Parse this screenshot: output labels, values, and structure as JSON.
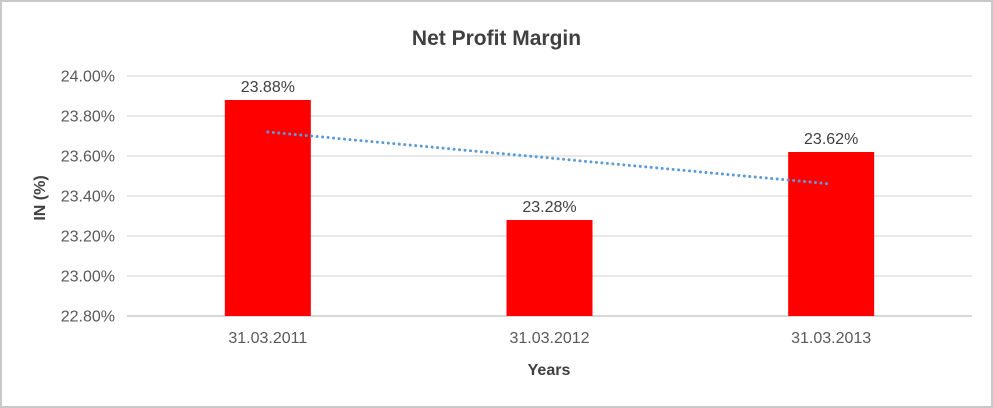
{
  "window": {
    "background": "#FFFFFF",
    "border_color": "#C8C8C8"
  },
  "chart_data": {
    "type": "bar",
    "title": "Net Profit Margin",
    "xlabel": "Years",
    "ylabel": "IN (%)",
    "categories": [
      "31.03.2011",
      "31.03.2012",
      "31.03.2013"
    ],
    "values": [
      23.88,
      23.28,
      23.62
    ],
    "data_labels": [
      "23.88%",
      "23.28%",
      "23.62%"
    ],
    "ylim": [
      22.8,
      24.0
    ],
    "ytick_step": 0.2,
    "ytick_labels": [
      "22.80%",
      "23.00%",
      "23.20%",
      "23.40%",
      "23.60%",
      "23.80%",
      "24.00%"
    ],
    "grid": true,
    "legend": "none",
    "colors": {
      "bar": "#FF0000",
      "trendline": "#5B9BD5",
      "gridline": "#D9D9D9",
      "axis_line": "#BFBFBF",
      "title_text": "#404040",
      "tick_text": "#595959"
    },
    "trendline": {
      "type": "linear",
      "style": "dotted",
      "start_value": 23.72,
      "end_value": 23.46
    }
  }
}
